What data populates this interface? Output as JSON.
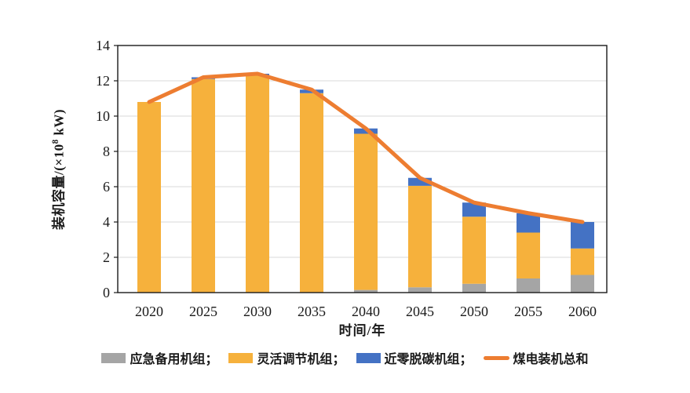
{
  "chart_data": {
    "type": "bar",
    "stacked": true,
    "title": "",
    "categories": [
      "2020",
      "2025",
      "2030",
      "2035",
      "2040",
      "2045",
      "2050",
      "2055",
      "2060"
    ],
    "series": [
      {
        "key": "emergency-backup",
        "name": "应急备用机组",
        "type": "bar",
        "color": "#A5A5A5",
        "values": [
          0,
          0,
          0,
          0,
          0.15,
          0.3,
          0.5,
          0.8,
          1.0
        ]
      },
      {
        "key": "flexible-regulation",
        "name": "灵活调节机组",
        "type": "bar",
        "color": "#F6B13C",
        "values": [
          10.8,
          12.1,
          12.3,
          11.3,
          8.85,
          5.75,
          3.8,
          2.6,
          1.5
        ]
      },
      {
        "key": "near-zero-decarb",
        "name": "近零脱碳机组",
        "type": "bar",
        "color": "#4472C4",
        "values": [
          0,
          0.1,
          0.1,
          0.2,
          0.3,
          0.45,
          0.8,
          1.1,
          1.5
        ]
      },
      {
        "key": "coal-total-line",
        "name": "煤电装机总和",
        "type": "line",
        "color": "#ED7D31",
        "values": [
          10.8,
          12.2,
          12.4,
          11.5,
          9.3,
          6.5,
          5.1,
          4.5,
          4.0
        ]
      }
    ],
    "xlabel": "时间/年",
    "ylabel": "装机容量/(×10⁸ kW)",
    "ylim": [
      0,
      14
    ],
    "yticks": [
      0,
      2,
      4,
      6,
      8,
      10,
      12,
      14
    ],
    "grid": true,
    "legend_position": "bottom"
  },
  "axes": {
    "x_title": "时间/年",
    "y_title_pre": "装机容量/(×10",
    "y_title_sup": "8",
    "y_title_post": " kW)"
  },
  "legend": {
    "items": [
      {
        "label": "应急备用机组；",
        "color": "#A5A5A5",
        "shape": "box"
      },
      {
        "label": "灵活调节机组；",
        "color": "#F6B13C",
        "shape": "box"
      },
      {
        "label": "近零脱碳机组；",
        "color": "#4472C4",
        "shape": "box"
      },
      {
        "label": "煤电装机总和",
        "color": "#ED7D31",
        "shape": "line"
      }
    ]
  }
}
